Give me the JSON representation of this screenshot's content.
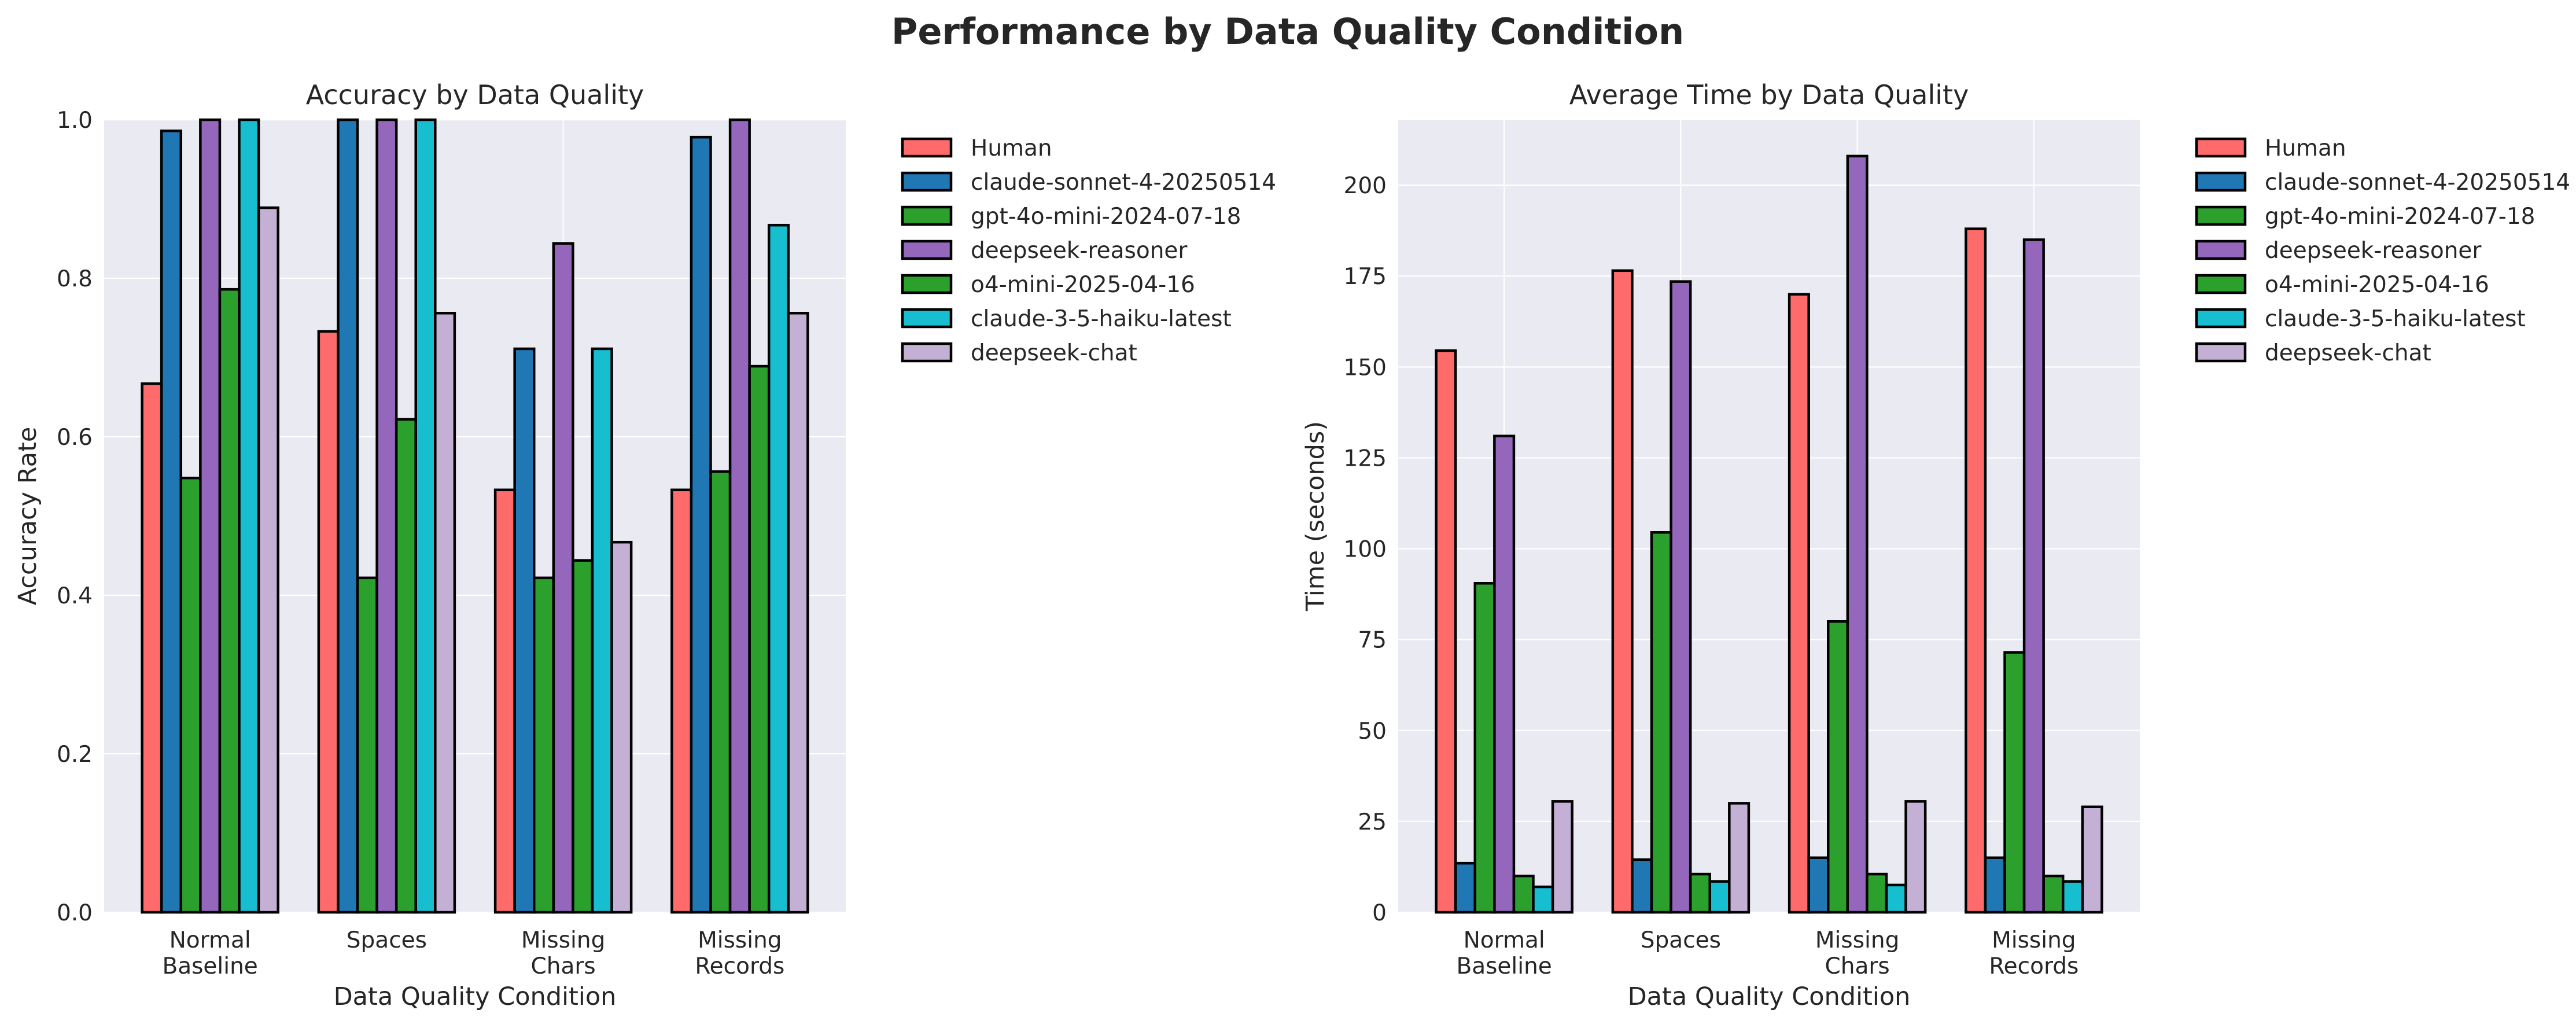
{
  "figure": {
    "suptitle": "Performance by Data Quality Condition"
  },
  "chart_data": [
    {
      "type": "bar",
      "title": "Accuracy by Data Quality",
      "xlabel": "Data Quality Condition",
      "ylabel": "Accuracy Rate",
      "categories": [
        [
          "Normal",
          "Baseline"
        ],
        [
          "Spaces"
        ],
        [
          "Missing",
          "Chars"
        ],
        [
          "Missing",
          "Records"
        ]
      ],
      "ylim": [
        0,
        1.0
      ],
      "yticks": [
        0.0,
        0.2,
        0.4,
        0.6,
        0.8,
        1.0
      ],
      "ytick_labels": [
        "0.0",
        "0.2",
        "0.4",
        "0.6",
        "0.8",
        "1.0"
      ],
      "grid": true,
      "legend_position": "outside-right",
      "series": [
        {
          "name": "Human",
          "color": "#ff6b6b",
          "values": [
            0.667,
            0.733,
            0.533,
            0.533
          ]
        },
        {
          "name": "claude-sonnet-4-20250514",
          "color": "#1f77b4",
          "values": [
            0.986,
            1.0,
            0.711,
            0.978
          ]
        },
        {
          "name": "gpt-4o-mini-2024-07-18",
          "color": "#2ca02c",
          "values": [
            0.548,
            0.422,
            0.422,
            0.556
          ]
        },
        {
          "name": "deepseek-reasoner",
          "color": "#9467bd",
          "values": [
            1.0,
            1.0,
            0.844,
            1.0
          ]
        },
        {
          "name": "o4-mini-2025-04-16",
          "color": "#2ca02c",
          "values": [
            0.786,
            0.622,
            0.444,
            0.689
          ]
        },
        {
          "name": "claude-3-5-haiku-latest",
          "color": "#17becf",
          "values": [
            1.0,
            1.0,
            0.711,
            0.867
          ]
        },
        {
          "name": "deepseek-chat",
          "color": "#c5b0d5",
          "values": [
            0.889,
            0.756,
            0.467,
            0.756
          ]
        }
      ]
    },
    {
      "type": "bar",
      "title": "Average Time by Data Quality",
      "xlabel": "Data Quality Condition",
      "ylabel": "Time (seconds)",
      "categories": [
        [
          "Normal",
          "Baseline"
        ],
        [
          "Spaces"
        ],
        [
          "Missing",
          "Chars"
        ],
        [
          "Missing",
          "Records"
        ]
      ],
      "ylim": [
        0,
        218
      ],
      "yticks": [
        0,
        25,
        50,
        75,
        100,
        125,
        150,
        175,
        200
      ],
      "ytick_labels": [
        "0",
        "25",
        "50",
        "75",
        "100",
        "125",
        "150",
        "175",
        "200"
      ],
      "grid": true,
      "legend_position": "outside-right",
      "series": [
        {
          "name": "Human",
          "color": "#ff6b6b",
          "values": [
            154.5,
            176.5,
            170.0,
            188.0
          ]
        },
        {
          "name": "claude-sonnet-4-20250514",
          "color": "#1f77b4",
          "values": [
            13.5,
            14.5,
            15.0,
            15.0
          ]
        },
        {
          "name": "gpt-4o-mini-2024-07-18",
          "color": "#2ca02c",
          "values": [
            90.5,
            104.5,
            80.0,
            71.5
          ]
        },
        {
          "name": "deepseek-reasoner",
          "color": "#9467bd",
          "values": [
            131.0,
            173.5,
            208.0,
            185.0
          ]
        },
        {
          "name": "o4-mini-2025-04-16",
          "color": "#2ca02c",
          "values": [
            10.0,
            10.5,
            10.5,
            10.0
          ]
        },
        {
          "name": "claude-3-5-haiku-latest",
          "color": "#17becf",
          "values": [
            7.0,
            8.5,
            7.5,
            8.5
          ]
        },
        {
          "name": "deepseek-chat",
          "color": "#c5b0d5",
          "values": [
            30.5,
            30.0,
            30.5,
            29.0
          ]
        }
      ]
    }
  ]
}
